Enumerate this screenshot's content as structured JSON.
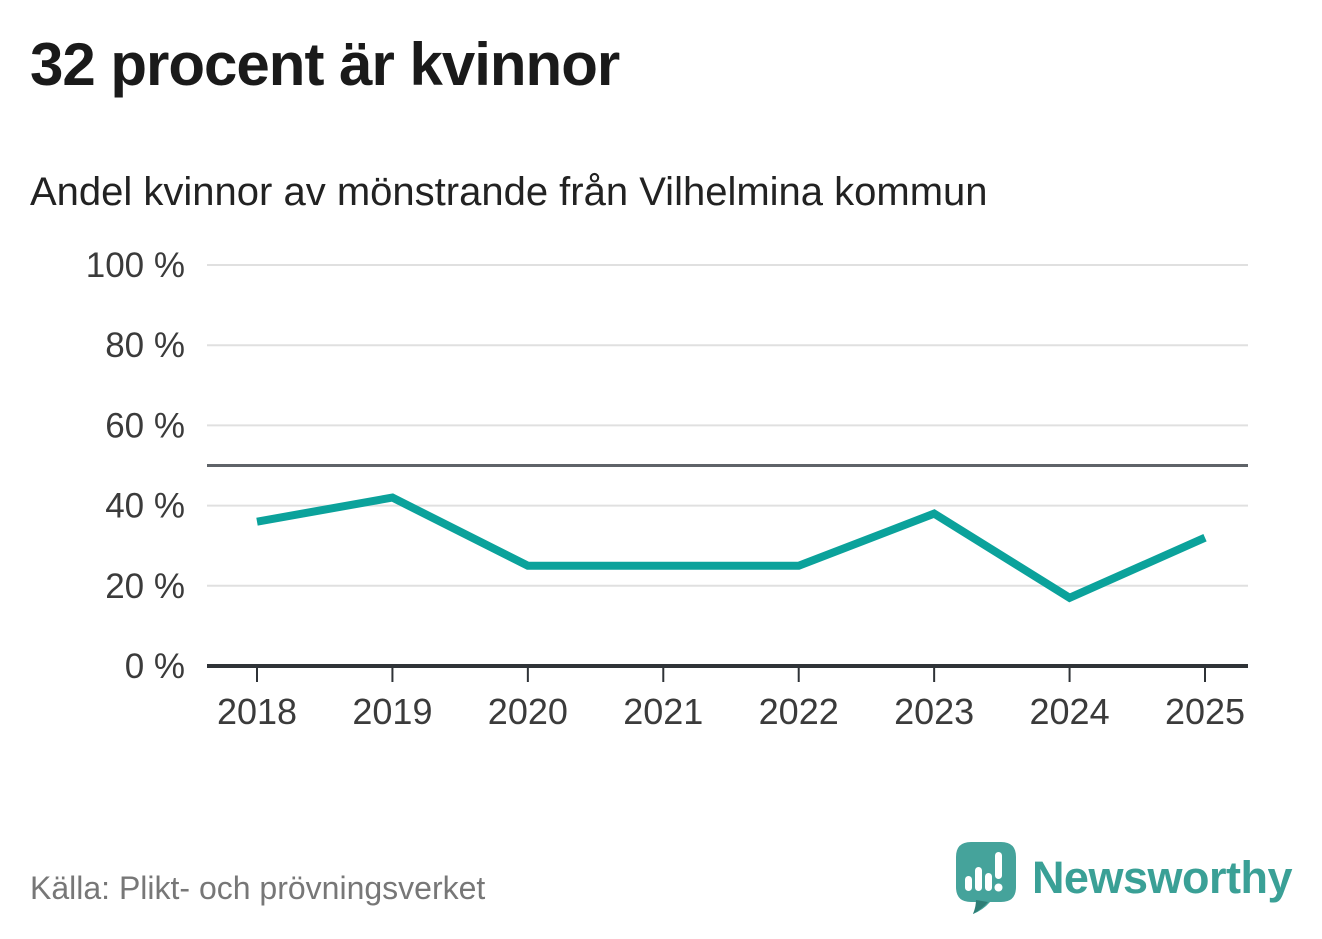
{
  "header": {
    "title": "32 procent är kvinnor",
    "subtitle": "Andel kvinnor av mönstrande från Vilhelmina kommun"
  },
  "footer": {
    "source": "Källa: Plikt- och prövningsverket",
    "logo_text": "Newsworthy",
    "logo_icon": "newsworthy-speech-bubble-bar-chart-icon"
  },
  "colors": {
    "line": "#0BA29B",
    "title_text": "#1a1a1a",
    "axis_text": "#3b3b3b",
    "gridline": "#e0e0e0",
    "reference_line": "#5f6368",
    "axis_line": "#2f3337",
    "source_text": "#777777",
    "logo_teal": "#45A39B",
    "logo_teal_dark": "#2E7E76",
    "logo_text_color": "#3AA096"
  },
  "chart_data": {
    "type": "line",
    "title": "Andel kvinnor av mönstrande från Vilhelmina kommun",
    "categories": [
      "2018",
      "2019",
      "2020",
      "2021",
      "2022",
      "2023",
      "2024",
      "2025"
    ],
    "series": [
      {
        "name": "Andel kvinnor av mönstrande",
        "values": [
          36,
          42,
          25,
          25,
          25,
          38,
          17,
          32
        ]
      }
    ],
    "unit": "%",
    "ylim": [
      0,
      100
    ],
    "yticks": [
      0,
      20,
      40,
      60,
      80,
      100
    ],
    "ytick_suffix": " %",
    "reference_line": 50,
    "grid": "horizontal",
    "legend": "none"
  }
}
